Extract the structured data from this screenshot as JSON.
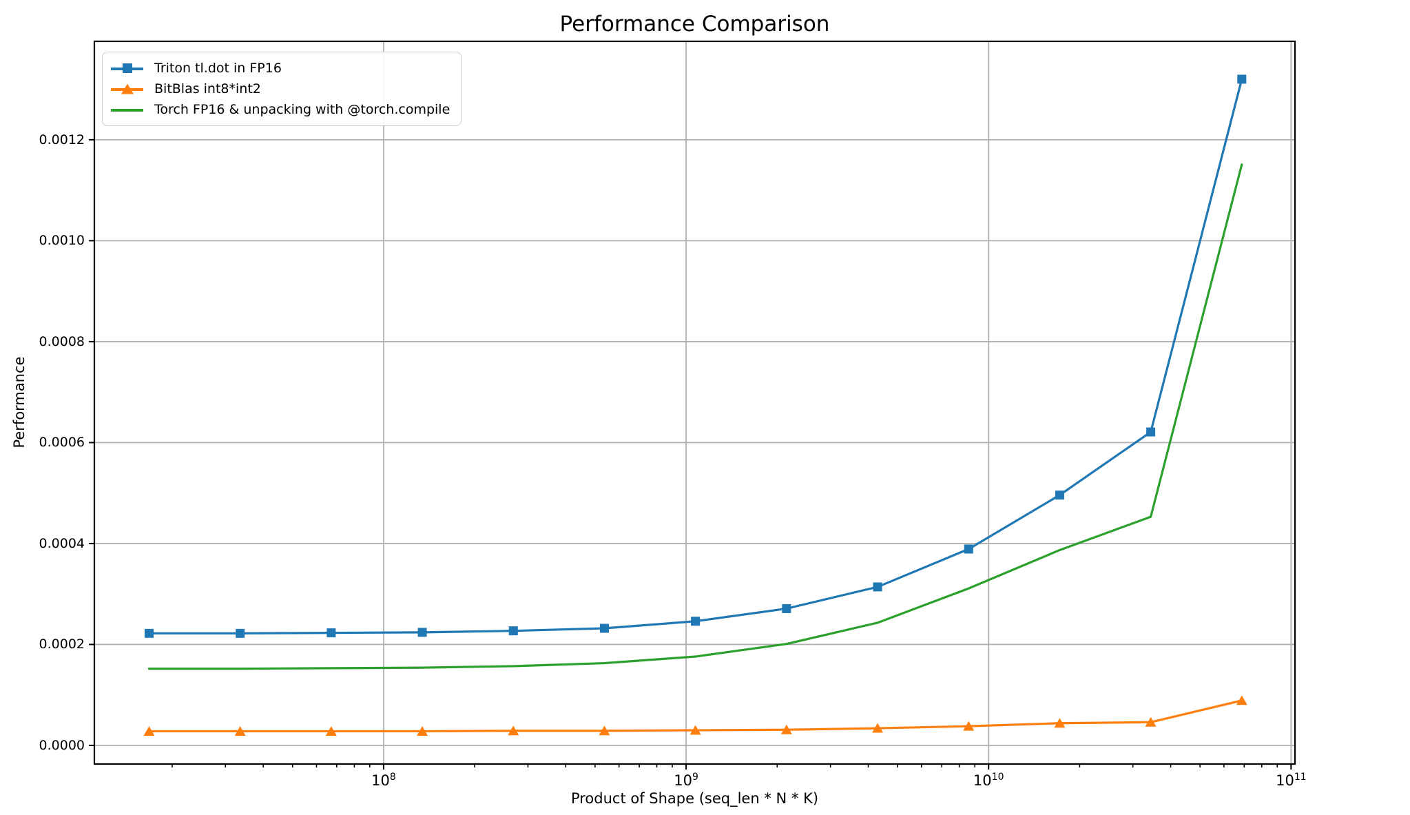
{
  "chart_data": {
    "type": "line",
    "title": "Performance Comparison",
    "xlabel": "Product of Shape (seq_len * N * K)",
    "ylabel": "Performance",
    "x_scale": "log",
    "grid": true,
    "legend_position": "upper left",
    "xlim": [
      11060000,
      103000000000
    ],
    "ylim": [
      -3.69e-05,
      0.001395
    ],
    "x_major_ticks": [
      100000000,
      1000000000,
      10000000000,
      100000000000
    ],
    "y_ticks": [
      0.0,
      0.0002,
      0.0004,
      0.0006,
      0.0008,
      0.001,
      0.0012
    ],
    "x": [
      16777216,
      33554432,
      67108864,
      134217728,
      268435456,
      536870912,
      1073741824,
      2147483648,
      4294967296,
      8589934592,
      17179869184,
      34359738368,
      68719476736
    ],
    "series": [
      {
        "name": "Triton tl.dot in FP16",
        "color": "#1f77b4",
        "marker": "square",
        "values": [
          0.000222,
          0.000222,
          0.000223,
          0.000224,
          0.000227,
          0.000232,
          0.000246,
          0.000271,
          0.000314,
          0.000389,
          0.000496,
          0.000621,
          0.00132
        ]
      },
      {
        "name": "BitBlas int8*int2",
        "color": "#ff7f0e",
        "marker": "triangle",
        "values": [
          2.8e-05,
          2.8e-05,
          2.8e-05,
          2.8e-05,
          2.9e-05,
          2.9e-05,
          3e-05,
          3.1e-05,
          3.4e-05,
          3.8e-05,
          4.4e-05,
          4.6e-05,
          8.9e-05
        ]
      },
      {
        "name": "Torch FP16 & unpacking with @torch.compile",
        "color": "#2ca02c",
        "marker": "none",
        "values": [
          0.000152,
          0.000152,
          0.000153,
          0.000154,
          0.000157,
          0.000163,
          0.000176,
          0.000201,
          0.000243,
          0.000311,
          0.000387,
          0.000453,
          0.001151
        ]
      }
    ],
    "style": {
      "grid_color": "#b0b0b0",
      "spine_color": "#000000",
      "background": "#ffffff"
    }
  }
}
